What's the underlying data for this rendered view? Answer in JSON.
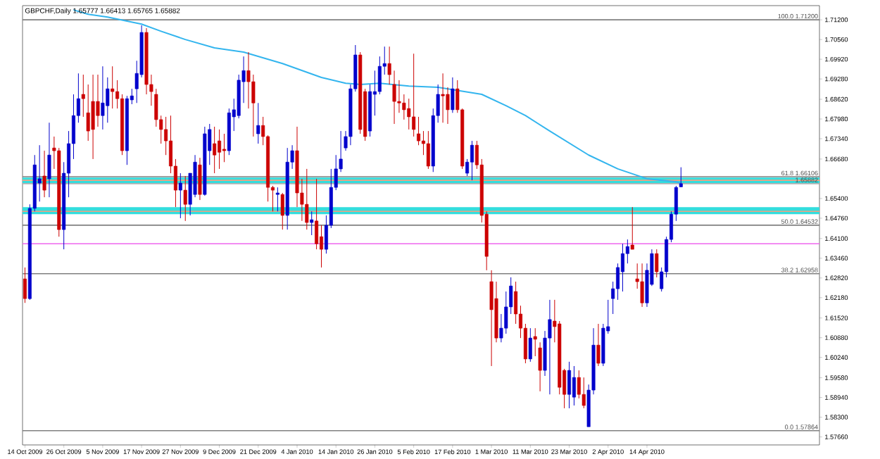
{
  "chart_data": {
    "type": "candlestick",
    "title": "GBPCHF,Daily  1.65777 1.66413 1.65765 1.65882",
    "categories": [
      "14 Oct 2009",
      null,
      null,
      null,
      null,
      null,
      null,
      null,
      "26 Oct 2009",
      null,
      null,
      null,
      null,
      null,
      null,
      null,
      "5 Nov 2009",
      null,
      null,
      null,
      null,
      null,
      null,
      null,
      "17 Nov 2009",
      null,
      null,
      null,
      null,
      null,
      null,
      null,
      "27 Nov 2009",
      null,
      null,
      null,
      null,
      null,
      null,
      null,
      "9 Dec 2009",
      null,
      null,
      null,
      null,
      null,
      null,
      null,
      "21 Dec 2009",
      null,
      null,
      null,
      null,
      null,
      null,
      null,
      "4 Jan 2010",
      null,
      null,
      null,
      null,
      null,
      null,
      null,
      "14 Jan 2010",
      null,
      null,
      null,
      null,
      null,
      null,
      null,
      "26 Jan 2010",
      null,
      null,
      null,
      null,
      null,
      null,
      null,
      "5 Feb 2010",
      null,
      null,
      null,
      null,
      null,
      null,
      null,
      "17 Feb 2010",
      null,
      null,
      null,
      null,
      null,
      null,
      null,
      "1 Mar 2010",
      null,
      null,
      null,
      null,
      null,
      null,
      null,
      "11 Mar 2010",
      null,
      null,
      null,
      null,
      null,
      null,
      null,
      "23 Mar 2010",
      null,
      null,
      null,
      null,
      null,
      null,
      null,
      "2 Apr 2010",
      null,
      null,
      null,
      null,
      null,
      null,
      null,
      "14 Apr 2010",
      null,
      null,
      null,
      null,
      null,
      null,
      null,
      null,
      null,
      null,
      null,
      null,
      null,
      null,
      null,
      null,
      null,
      null,
      null,
      null,
      null,
      null,
      null,
      null,
      null,
      null,
      null,
      null,
      null,
      null,
      null,
      null,
      null,
      null,
      null
    ],
    "ohlc": [
      [
        1.6279,
        1.6316,
        1.6201,
        1.6215
      ],
      [
        1.6215,
        1.6521,
        1.6211,
        1.6508
      ],
      [
        1.6508,
        1.6681,
        1.6498,
        1.6649
      ],
      [
        1.659,
        1.6713,
        1.653,
        1.6604
      ],
      [
        1.6613,
        1.6695,
        1.6544,
        1.6567
      ],
      [
        1.6604,
        1.6786,
        1.6544,
        1.6681
      ],
      [
        1.6704,
        1.6741,
        1.6636,
        1.6695
      ],
      [
        1.6695,
        1.6704,
        1.6416,
        1.6439
      ],
      [
        1.6439,
        1.6658,
        1.6375,
        1.6622
      ],
      [
        1.6622,
        1.6759,
        1.6544,
        1.6718
      ],
      [
        1.6718,
        1.6878,
        1.6668,
        1.6809
      ],
      [
        1.6809,
        1.6946,
        1.6786,
        1.6864
      ],
      [
        1.6878,
        1.6942,
        1.6805,
        1.6864
      ],
      [
        1.6818,
        1.691,
        1.6727,
        1.6759
      ],
      [
        1.6855,
        1.6942,
        1.6668,
        1.6764
      ],
      [
        1.6855,
        1.6942,
        1.6773,
        1.6809
      ],
      [
        1.6809,
        1.6969,
        1.6764,
        1.685
      ],
      [
        1.6841,
        1.6933,
        1.6786,
        1.6896
      ],
      [
        1.6896,
        1.6969,
        1.6832,
        1.6887
      ],
      [
        1.6887,
        1.6924,
        1.6832,
        1.6864
      ],
      [
        1.6864,
        1.6878,
        1.6681,
        1.6695
      ],
      [
        1.6695,
        1.6873,
        1.6649,
        1.6864
      ],
      [
        1.686,
        1.6896,
        1.6846,
        1.6873
      ],
      [
        1.6896,
        1.6987,
        1.685,
        1.6946
      ],
      [
        1.6942,
        1.7102,
        1.6933,
        1.7079
      ],
      [
        1.7079,
        1.7093,
        1.6878,
        1.691
      ],
      [
        1.691,
        1.6942,
        1.6841,
        1.6887
      ],
      [
        1.6878,
        1.6896,
        1.6773,
        1.6796
      ],
      [
        1.6796,
        1.6809,
        1.6718,
        1.6764
      ],
      [
        1.6764,
        1.6805,
        1.6681,
        1.6727
      ],
      [
        1.6727,
        1.6809,
        1.6622,
        1.6645
      ],
      [
        1.6645,
        1.6668,
        1.6512,
        1.6567
      ],
      [
        1.6567,
        1.6622,
        1.6476,
        1.659
      ],
      [
        1.6567,
        1.6613,
        1.6467,
        1.6521
      ],
      [
        1.6521,
        1.6622,
        1.6485,
        1.6622
      ],
      [
        1.6553,
        1.6681,
        1.6544,
        1.6658
      ],
      [
        1.6649,
        1.6672,
        1.6535,
        1.6553
      ],
      [
        1.6553,
        1.6773,
        1.6549,
        1.675
      ],
      [
        1.6695,
        1.6782,
        1.6649,
        1.6764
      ],
      [
        1.6718,
        1.6773,
        1.6622,
        1.6681
      ],
      [
        1.6727,
        1.6764,
        1.6636,
        1.669
      ],
      [
        1.67,
        1.675,
        1.6658,
        1.6695
      ],
      [
        1.6695,
        1.6832,
        1.6681,
        1.6818
      ],
      [
        1.6805,
        1.6864,
        1.6759,
        1.6828
      ],
      [
        1.6809,
        1.6942,
        1.68,
        1.6924
      ],
      [
        1.6919,
        1.7001,
        1.685,
        1.6955
      ],
      [
        1.6955,
        1.7015,
        1.6832,
        1.6919
      ],
      [
        1.6919,
        1.6942,
        1.6741,
        1.685
      ],
      [
        1.675,
        1.685,
        1.6718,
        1.6777
      ],
      [
        1.6777,
        1.6805,
        1.6713,
        1.6741
      ],
      [
        1.6741,
        1.6745,
        1.653,
        1.6576
      ],
      [
        1.6576,
        1.6581,
        1.6498,
        1.6567
      ],
      [
        1.6553,
        1.6576,
        1.6498,
        1.6558
      ],
      [
        1.6553,
        1.6558,
        1.6439,
        1.6485
      ],
      [
        1.6485,
        1.6704,
        1.6439,
        1.6658
      ],
      [
        1.6658,
        1.6713,
        1.6636,
        1.6695
      ],
      [
        1.6695,
        1.6773,
        1.6512,
        1.6558
      ],
      [
        1.6558,
        1.6604,
        1.6467,
        1.6521
      ],
      [
        1.6521,
        1.6636,
        1.6439,
        1.6462
      ],
      [
        1.6462,
        1.6498,
        1.6421,
        1.6471
      ],
      [
        1.6467,
        1.6604,
        1.6375,
        1.6393
      ],
      [
        1.6416,
        1.6453,
        1.6316,
        1.6375
      ],
      [
        1.6375,
        1.6485,
        1.6361,
        1.6453
      ],
      [
        1.6453,
        1.6636,
        1.6444,
        1.6576
      ],
      [
        1.6576,
        1.6681,
        1.6567,
        1.6636
      ],
      [
        1.6636,
        1.6759,
        1.6626,
        1.6668
      ],
      [
        1.6704,
        1.6759,
        1.6695,
        1.6741
      ],
      [
        1.6741,
        1.691,
        1.6713,
        1.6896
      ],
      [
        1.6896,
        1.7038,
        1.6887,
        1.7006
      ],
      [
        1.7006,
        1.7015,
        1.675,
        1.6764
      ],
      [
        1.6887,
        1.6896,
        1.6727,
        1.6741
      ],
      [
        1.6759,
        1.691,
        1.6741,
        1.6887
      ],
      [
        1.6878,
        1.6955,
        1.6809,
        1.6887
      ],
      [
        1.6887,
        1.7001,
        1.6878,
        1.6969
      ],
      [
        1.6969,
        1.7033,
        1.6942,
        1.6978
      ],
      [
        1.6978,
        1.7033,
        1.691,
        1.6942
      ],
      [
        1.691,
        1.6955,
        1.6782,
        1.6855
      ],
      [
        1.6855,
        1.6924,
        1.6818,
        1.685
      ],
      [
        1.685,
        1.6878,
        1.6796,
        1.6828
      ],
      [
        1.6832,
        1.6864,
        1.6764,
        1.6805
      ],
      [
        1.6805,
        1.701,
        1.6741,
        1.6764
      ],
      [
        1.675,
        1.6805,
        1.6713,
        1.6727
      ],
      [
        1.6727,
        1.6759,
        1.6681,
        1.6718
      ],
      [
        1.6718,
        1.6759,
        1.6636,
        1.6645
      ],
      [
        1.6645,
        1.6832,
        1.6626,
        1.6809
      ],
      [
        1.6809,
        1.691,
        1.6786,
        1.6878
      ],
      [
        1.6878,
        1.6946,
        1.6786,
        1.6873
      ],
      [
        1.6878,
        1.6901,
        1.6782,
        1.6828
      ],
      [
        1.6828,
        1.6933,
        1.6818,
        1.6896
      ],
      [
        1.6896,
        1.6924,
        1.6818,
        1.6828
      ],
      [
        1.6828,
        1.6832,
        1.6636,
        1.6645
      ],
      [
        1.6622,
        1.6668,
        1.6613,
        1.6658
      ],
      [
        1.6658,
        1.6727,
        1.6599,
        1.6713
      ],
      [
        1.6713,
        1.6727,
        1.6636,
        1.6649
      ],
      [
        1.6649,
        1.6668,
        1.6462,
        1.6485
      ],
      [
        1.6489,
        1.6498,
        1.6307,
        1.6352
      ],
      [
        1.627,
        1.6307,
        1.5996,
        1.6179
      ],
      [
        1.6215,
        1.627,
        1.6073,
        1.6087
      ],
      [
        1.6087,
        1.6165,
        1.6073,
        1.6119
      ],
      [
        1.6119,
        1.6238,
        1.6101,
        1.6188
      ],
      [
        1.6188,
        1.6284,
        1.6165,
        1.6256
      ],
      [
        1.6238,
        1.627,
        1.6133,
        1.6165
      ],
      [
        1.6165,
        1.6192,
        1.6087,
        1.6119
      ],
      [
        1.6119,
        1.6133,
        1.6005,
        1.6019
      ],
      [
        1.6019,
        1.6119,
        1.601,
        1.6087
      ],
      [
        1.6092,
        1.6119,
        1.6028,
        1.6083
      ],
      [
        1.6055,
        1.6073,
        1.5914,
        1.5982
      ],
      [
        1.5982,
        1.611,
        1.5964,
        1.6087
      ],
      [
        1.6087,
        1.6211,
        1.5904,
        1.6147
      ],
      [
        1.6142,
        1.6211,
        1.6073,
        1.6124
      ],
      [
        1.6133,
        1.6142,
        1.5904,
        1.5927
      ],
      [
        1.5982,
        1.5987,
        1.5859,
        1.5904
      ],
      [
        1.5904,
        1.601,
        1.5859,
        1.5982
      ],
      [
        1.5895,
        1.5996,
        1.5868,
        1.5959
      ],
      [
        1.5959,
        1.5982,
        1.5891,
        1.5904
      ],
      [
        1.5904,
        1.5959,
        1.5859,
        1.5868
      ],
      [
        1.5799,
        1.5936,
        1.5799,
        1.5918
      ],
      [
        1.5918,
        1.6119,
        1.5904,
        1.6064
      ],
      [
        1.6064,
        1.6133,
        1.5996,
        1.6005
      ],
      [
        1.6005,
        1.6133,
        1.5996,
        1.6119
      ],
      [
        1.611,
        1.6211,
        1.6101,
        1.6124
      ],
      [
        1.6215,
        1.627,
        1.6165,
        1.6247
      ],
      [
        1.6247,
        1.6329,
        1.6211,
        1.6316
      ],
      [
        1.6302,
        1.6393,
        1.6238,
        1.6361
      ],
      [
        1.6361,
        1.6407,
        1.6329,
        1.6384
      ],
      [
        1.6389,
        1.6512,
        1.6375,
        1.6375
      ],
      [
        1.6279,
        1.6329,
        1.6247,
        1.627
      ],
      [
        1.627,
        1.6329,
        1.6188,
        1.6201
      ],
      [
        1.6201,
        1.6329,
        1.6188,
        1.6307
      ],
      [
        1.6261,
        1.6375,
        1.6256,
        1.6361
      ],
      [
        1.6361,
        1.6375,
        1.6284,
        1.6302
      ],
      [
        1.6247,
        1.6316,
        1.6238,
        1.6302
      ],
      [
        1.6302,
        1.6416,
        1.6284,
        1.6407
      ],
      [
        1.6407,
        1.6498,
        1.6398,
        1.6489
      ],
      [
        1.6489,
        1.6581,
        1.6467,
        1.6576
      ],
      [
        1.65777,
        1.66413,
        1.65765,
        1.65882
      ],
      null,
      null,
      null,
      null,
      null,
      null,
      null,
      null,
      null,
      null,
      null,
      null,
      null,
      null,
      null,
      null,
      null,
      null,
      null,
      null,
      null,
      null,
      null,
      null,
      null,
      null,
      null,
      null
    ],
    "colors": [
      "#cc0000",
      "#0000cc",
      "#0000cc",
      "#0000cc",
      "#cc0000",
      "#0000cc",
      "#cc0000",
      "#cc0000",
      "#0000cc",
      "#0000cc",
      "#0000cc",
      "#0000cc",
      "#cc0000",
      "#cc0000",
      "#cc0000",
      "#cc0000",
      "#0000cc",
      "#0000cc",
      "#cc0000",
      "#cc0000",
      "#cc0000",
      "#0000cc",
      "#0000cc",
      "#0000cc",
      "#0000cc",
      "#cc0000",
      "#cc0000",
      "#cc0000",
      "#cc0000",
      "#cc0000",
      "#cc0000",
      "#cc0000",
      "#0000cc",
      "#cc0000",
      "#0000cc",
      "#0000cc",
      "#cc0000",
      "#0000cc",
      "#0000cc",
      "#cc0000",
      "#cc0000",
      "#cc0000",
      "#0000cc",
      "#0000cc",
      "#0000cc",
      "#0000cc",
      "#cc0000",
      "#cc0000",
      "#0000cc",
      "#cc0000",
      "#cc0000",
      "#cc0000",
      "#0000cc",
      "#cc0000",
      "#0000cc",
      "#0000cc",
      "#cc0000",
      "#cc0000",
      "#cc0000",
      "#0000cc",
      "#cc0000",
      "#cc0000",
      "#0000cc",
      "#0000cc",
      "#0000cc",
      "#0000cc",
      "#0000cc",
      "#0000cc",
      "#0000cc",
      "#cc0000",
      "#cc0000",
      "#0000cc",
      "#0000cc",
      "#0000cc",
      "#0000cc",
      "#cc0000",
      "#cc0000",
      "#cc0000",
      "#cc0000",
      "#cc0000",
      "#cc0000",
      "#cc0000",
      "#cc0000",
      "#cc0000",
      "#0000cc",
      "#0000cc",
      "#cc0000",
      "#cc0000",
      "#0000cc",
      "#cc0000",
      "#cc0000",
      "#0000cc",
      "#0000cc",
      "#cc0000",
      "#cc0000",
      "#cc0000",
      "#cc0000",
      "#cc0000",
      "#0000cc",
      "#0000cc",
      "#0000cc",
      "#cc0000",
      "#cc0000",
      "#cc0000",
      "#0000cc",
      "#cc0000",
      "#cc0000",
      "#0000cc",
      "#0000cc",
      "#cc0000",
      "#cc0000",
      "#cc0000",
      "#0000cc",
      "#0000cc",
      "#cc0000",
      "#cc0000",
      "#0000cc",
      "#0000cc",
      "#cc0000",
      "#0000cc",
      "#0000cc",
      "#0000cc",
      "#0000cc",
      "#0000cc",
      "#0000cc",
      "#cc0000",
      "#cc0000",
      "#cc0000",
      "#0000cc",
      "#0000cc",
      "#cc0000",
      "#0000cc",
      "#0000cc",
      "#0000cc",
      "#0000cc",
      "#0000cc",
      null,
      null,
      null,
      null,
      null,
      null,
      null,
      null,
      null,
      null,
      null,
      null,
      null,
      null,
      null,
      null,
      null,
      null,
      null,
      null,
      null,
      null,
      null,
      null,
      null,
      null,
      null,
      null
    ],
    "series": [
      {
        "type": "line",
        "color": "#33b5ee",
        "values": [
          null,
          null,
          null,
          null,
          null,
          null,
          null,
          null,
          null,
          null,
          1.7152,
          null,
          null,
          1.7138,
          null,
          null,
          null,
          1.7129,
          null,
          null,
          null,
          null,
          null,
          null,
          1.7106,
          null,
          null,
          null,
          1.7083,
          null,
          null,
          null,
          null,
          1.7056,
          null,
          null,
          null,
          null,
          null,
          1.7029,
          null,
          null,
          null,
          null,
          null,
          1.7015,
          null,
          null,
          null,
          null,
          null,
          null,
          null,
          1.6978,
          null,
          null,
          null,
          null,
          null,
          null,
          null,
          1.6933,
          null,
          null,
          null,
          null,
          1.6914,
          null,
          null,
          1.691,
          null,
          null,
          null,
          1.6914,
          null,
          null,
          null,
          null,
          null,
          1.6905,
          null,
          null,
          null,
          null,
          null,
          1.6901,
          null,
          null,
          null,
          null,
          null,
          null,
          null,
          null,
          1.6878,
          null,
          null,
          null,
          null,
          1.6841,
          null,
          null,
          null,
          1.6809,
          null,
          null,
          null,
          null,
          1.6759,
          null,
          null,
          null,
          null,
          null,
          null,
          null,
          1.6681,
          null,
          null,
          null,
          null,
          null,
          1.6636,
          null,
          null,
          null,
          null,
          null,
          1.6604,
          null,
          null,
          null,
          null,
          null,
          1.6594,
          1.659,
          null,
          null,
          null,
          null,
          null,
          null,
          null,
          null,
          null,
          null,
          null,
          null,
          null,
          null,
          null,
          null,
          null,
          null,
          null,
          null,
          null,
          null,
          null,
          null,
          null,
          null,
          null,
          null
        ]
      }
    ],
    "ylim": [
      1.574,
      1.7166
    ],
    "yticks": [
      {
        "value": 1.712,
        "label": "1.71200"
      },
      {
        "value": 1.7056,
        "label": "1.70560"
      },
      {
        "value": 1.6992,
        "label": "1.69920"
      },
      {
        "value": 1.6928,
        "label": "1.69280"
      },
      {
        "value": 1.6862,
        "label": "1.68620"
      },
      {
        "value": 1.6798,
        "label": "1.67980"
      },
      {
        "value": 1.6734,
        "label": "1.67340"
      },
      {
        "value": 1.6668,
        "label": "1.66680"
      },
      {
        "value": 1.654,
        "label": "1.65400"
      },
      {
        "value": 1.6476,
        "label": "1.64760"
      },
      {
        "value": 1.641,
        "label": "1.64100"
      },
      {
        "value": 1.6346,
        "label": "1.63460"
      },
      {
        "value": 1.6282,
        "label": "1.62820"
      },
      {
        "value": 1.6218,
        "label": "1.62180"
      },
      {
        "value": 1.6152,
        "label": "1.61520"
      },
      {
        "value": 1.6088,
        "label": "1.60880"
      },
      {
        "value": 1.6024,
        "label": "1.60240"
      },
      {
        "value": 1.5958,
        "label": "1.59580"
      },
      {
        "value": 1.5894,
        "label": "1.58940"
      },
      {
        "value": 1.583,
        "label": "1.58300"
      },
      {
        "value": 1.5766,
        "label": "1.57660"
      }
    ],
    "bands": [
      {
        "axis": "y",
        "from": 1.6589,
        "to": 1.6608,
        "color": "#33dddd"
      },
      {
        "axis": "y",
        "from": 1.6489,
        "to": 1.6512,
        "color": "#33dddd"
      }
    ],
    "ref_lines": [
      {
        "axis": "y",
        "value": 1.712,
        "label": "100.0  1.71200",
        "color": "#808080"
      },
      {
        "axis": "y",
        "value": 1.66106,
        "label": "61.8  1.66106",
        "color": "#808080"
      },
      {
        "axis": "y",
        "value": 1.64532,
        "label": "50.0  1.64532",
        "color": "#808080"
      },
      {
        "axis": "y",
        "value": 1.62958,
        "label": "38.2  1.62958",
        "color": "#808080"
      },
      {
        "axis": "y",
        "value": 1.57864,
        "label": "0.0  1.57864",
        "color": "#808080"
      },
      {
        "axis": "y",
        "value": 1.6599,
        "color": "#f4a080"
      },
      {
        "axis": "y",
        "value": 1.6498,
        "color": "#f4a080"
      },
      {
        "axis": "y",
        "value": 1.6393,
        "color": "#ee66ee"
      },
      {
        "axis": "y",
        "value": 1.65882,
        "label": "1.65882",
        "color": "#b0b0b0"
      }
    ]
  }
}
